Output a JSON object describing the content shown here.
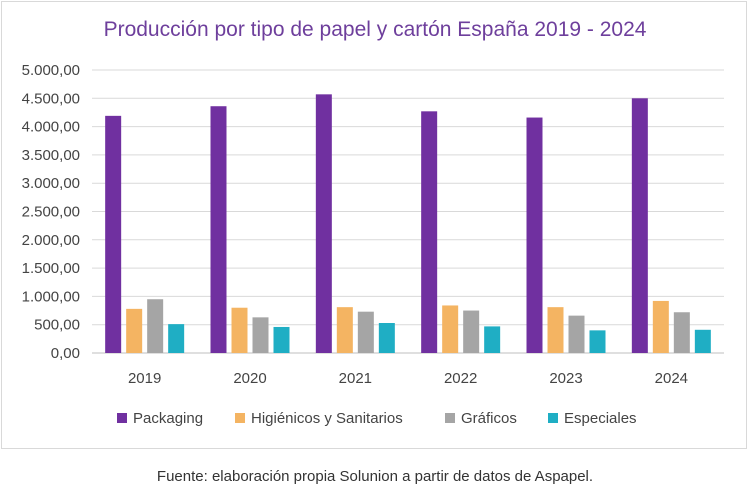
{
  "chart_data": {
    "type": "bar",
    "title": "Producción por tipo de papel y cartón España 2019 - 2024",
    "categories": [
      "2019",
      "2020",
      "2021",
      "2022",
      "2023",
      "2024"
    ],
    "series": [
      {
        "name": "Packaging",
        "color": "#7030a0",
        "values": [
          4190,
          4360,
          4570,
          4270,
          4160,
          4500
        ]
      },
      {
        "name": "Higiénicos y Sanitarios",
        "color": "#f4b462",
        "values": [
          780,
          800,
          810,
          840,
          810,
          920
        ]
      },
      {
        "name": "Gráficos",
        "color": "#a5a5a5",
        "values": [
          950,
          630,
          730,
          750,
          660,
          720
        ]
      },
      {
        "name": "Especiales",
        "color": "#1faec4",
        "values": [
          510,
          460,
          530,
          470,
          400,
          410
        ]
      }
    ],
    "yticks": [
      "0,00",
      "500,00",
      "1.000,00",
      "1.500,00",
      "2.000,00",
      "2.500,00",
      "3.000,00",
      "3.500,00",
      "4.000,00",
      "4.500,00",
      "5.000,00"
    ],
    "ylim": [
      0,
      5000
    ],
    "grid": true,
    "legend": "bottom"
  },
  "source": "Fuente: elaboración propia Solunion a partir de datos de Aspapel."
}
